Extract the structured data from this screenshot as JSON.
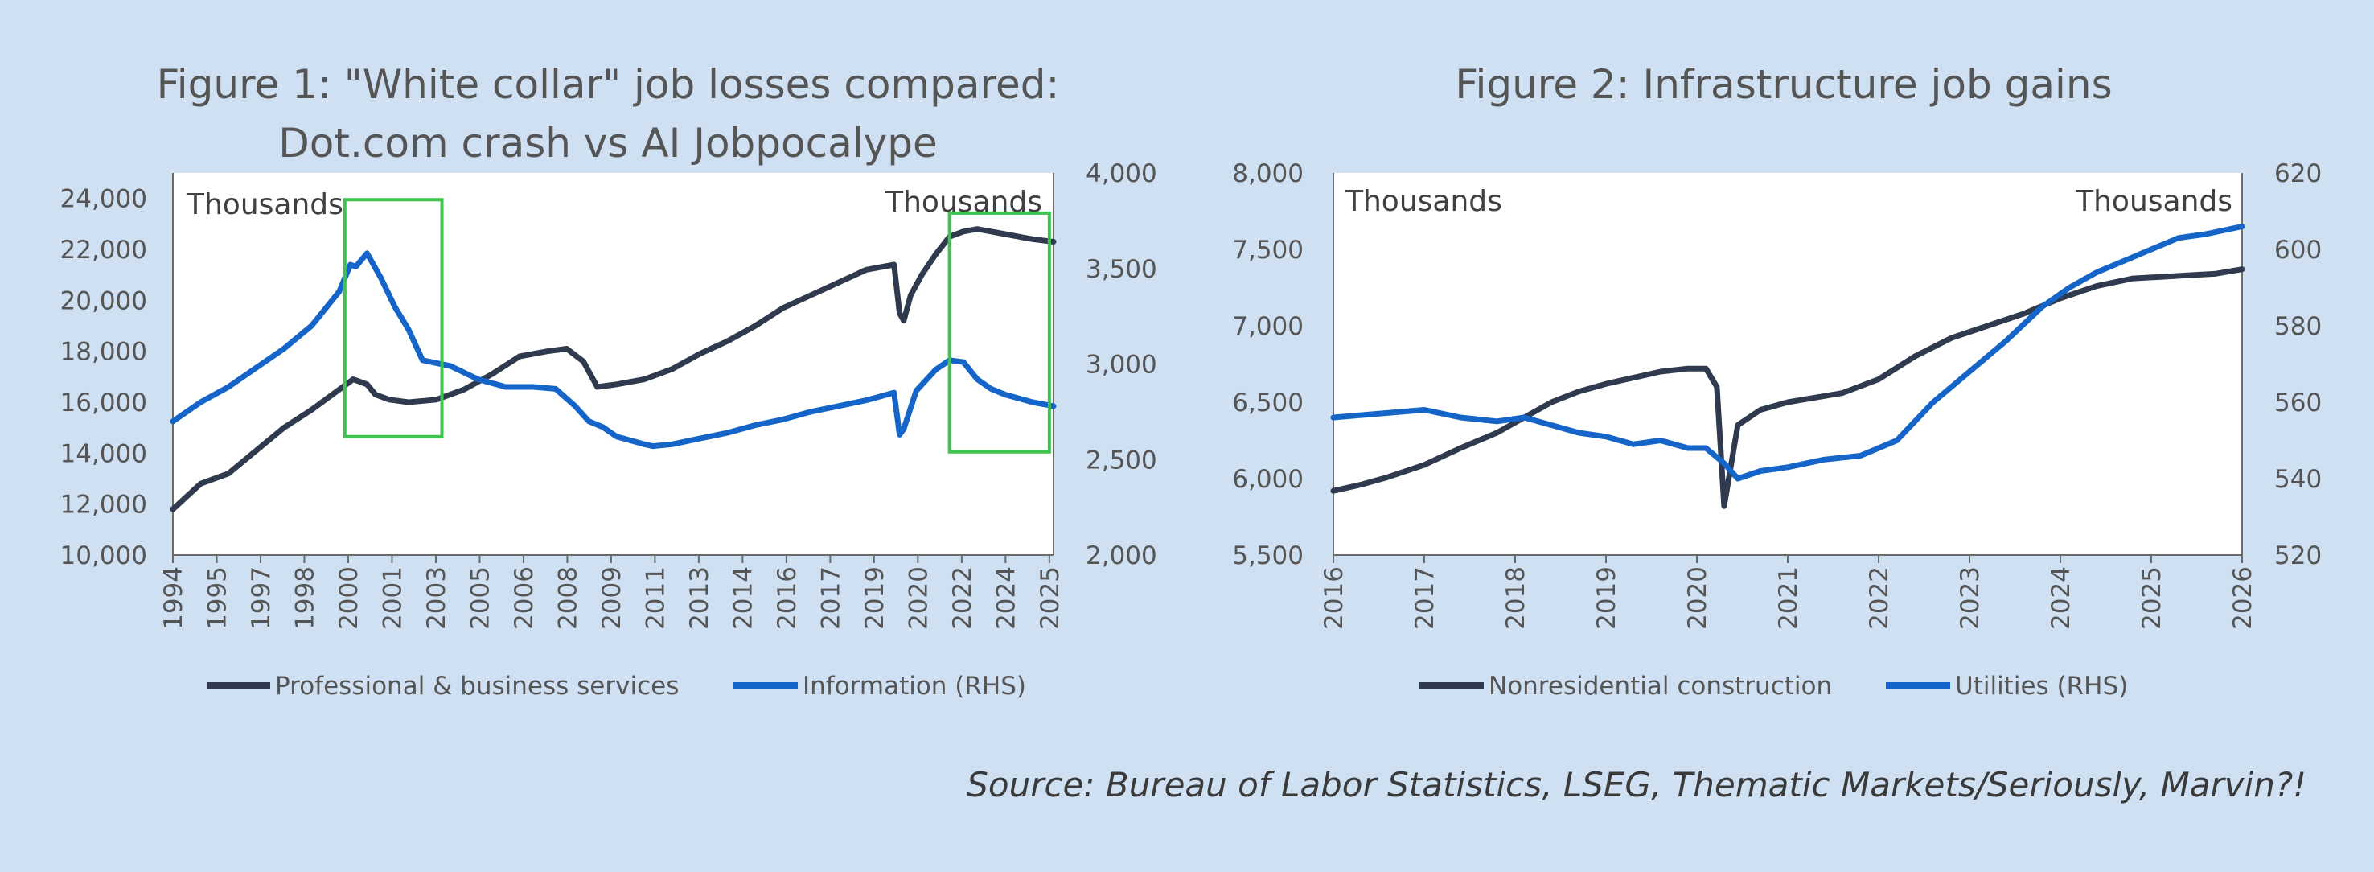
{
  "source": "Source: Bureau of Labor Statistics, LSEG, Thematic Markets/Seriously, Marvin?!",
  "colors": {
    "background": "#cfe0f3",
    "dark_series": "#2f3a4f",
    "blue_series": "#1565c8",
    "highlight_box": "#3cc44f"
  },
  "chart_data": [
    {
      "type": "line",
      "title_lines": [
        "Figure 1: \"White collar\" job losses compared:",
        "Dot.com crash vs AI Jobpocalype"
      ],
      "units_left": "Thousands",
      "units_right": "Thousands",
      "x_range": [
        1994,
        2025.75
      ],
      "x_ticks": [
        {
          "label": "1994",
          "value": 1994.0
        },
        {
          "label": "1995",
          "value": 1995.58
        },
        {
          "label": "1997",
          "value": 1997.16
        },
        {
          "label": "1998",
          "value": 1998.74
        },
        {
          "label": "2000",
          "value": 2000.32
        },
        {
          "label": "2001",
          "value": 2001.9
        },
        {
          "label": "2003",
          "value": 2003.48
        },
        {
          "label": "2005",
          "value": 2005.06
        },
        {
          "label": "2006",
          "value": 2006.64
        },
        {
          "label": "2008",
          "value": 2008.22
        },
        {
          "label": "2009",
          "value": 2009.8
        },
        {
          "label": "2011",
          "value": 2011.38
        },
        {
          "label": "2013",
          "value": 2012.96
        },
        {
          "label": "2014",
          "value": 2014.54
        },
        {
          "label": "2016",
          "value": 2016.12
        },
        {
          "label": "2017",
          "value": 2017.7
        },
        {
          "label": "2019",
          "value": 2019.28
        },
        {
          "label": "2020",
          "value": 2020.86
        },
        {
          "label": "2022",
          "value": 2022.44
        },
        {
          "label": "2024",
          "value": 2024.02
        },
        {
          "label": "2025",
          "value": 2025.6
        }
      ],
      "y_left": {
        "min": 10000,
        "max": 25000,
        "ticks": [
          "10,000",
          "12,000",
          "14,000",
          "16,000",
          "18,000",
          "20,000",
          "22,000",
          "24,000"
        ],
        "tick_values": [
          10000,
          12000,
          14000,
          16000,
          18000,
          20000,
          22000,
          24000
        ]
      },
      "y_right": {
        "min": 2000,
        "max": 4000,
        "ticks": [
          "2,000",
          "2,500",
          "3,000",
          "3,500",
          "4,000"
        ],
        "tick_values": [
          2000,
          2500,
          3000,
          3500,
          4000
        ]
      },
      "highlight_boxes": [
        {
          "x0": 2000.2,
          "x1": 2003.7,
          "y0_right": 2620,
          "y1_right": 3860
        },
        {
          "x0": 2022.0,
          "x1": 2025.6,
          "y0_right": 2540,
          "y1_right": 3790
        }
      ],
      "series": [
        {
          "name": "Professional & business services",
          "axis": "left",
          "color": "#2f3a4f",
          "x": [
            1994.0,
            1995.0,
            1996.0,
            1997.0,
            1998.0,
            1999.0,
            2000.0,
            2000.5,
            2001.0,
            2001.3,
            2001.8,
            2002.5,
            2003.5,
            2004.5,
            2005.5,
            2006.5,
            2007.5,
            2008.2,
            2008.8,
            2009.3,
            2010.0,
            2011.0,
            2012.0,
            2013.0,
            2014.0,
            2015.0,
            2016.0,
            2017.0,
            2018.0,
            2019.0,
            2020.0,
            2020.2,
            2020.35,
            2020.6,
            2021.0,
            2021.5,
            2022.0,
            2022.5,
            2023.0,
            2023.5,
            2024.0,
            2024.5,
            2025.0,
            2025.75
          ],
          "y": [
            11800,
            12800,
            13200,
            14100,
            15000,
            15700,
            16500,
            16900,
            16700,
            16300,
            16100,
            16000,
            16100,
            16500,
            17100,
            17800,
            18000,
            18100,
            17600,
            16600,
            16700,
            16900,
            17300,
            17900,
            18400,
            19000,
            19700,
            20200,
            20700,
            21200,
            21400,
            19500,
            19200,
            20200,
            21000,
            21800,
            22500,
            22700,
            22800,
            22700,
            22600,
            22500,
            22400,
            22300
          ]
        },
        {
          "name": "Information (RHS)",
          "axis": "right",
          "color": "#1565c8",
          "x": [
            1994.0,
            1995.0,
            1996.0,
            1997.0,
            1998.0,
            1999.0,
            2000.0,
            2000.4,
            2000.6,
            2001.0,
            2001.5,
            2002.0,
            2002.5,
            2003.0,
            2004.0,
            2005.0,
            2006.0,
            2007.0,
            2007.8,
            2008.5,
            2009.0,
            2009.5,
            2010.0,
            2011.0,
            2011.3,
            2012.0,
            2013.0,
            2014.0,
            2015.0,
            2016.0,
            2017.0,
            2018.0,
            2019.0,
            2020.0,
            2020.2,
            2020.35,
            2020.8,
            2021.5,
            2022.0,
            2022.5,
            2023.0,
            2023.5,
            2024.0,
            2024.5,
            2025.0,
            2025.75
          ],
          "y": [
            2700,
            2800,
            2880,
            2980,
            3080,
            3200,
            3380,
            3520,
            3510,
            3580,
            3450,
            3300,
            3180,
            3020,
            2990,
            2920,
            2880,
            2880,
            2870,
            2780,
            2700,
            2670,
            2620,
            2580,
            2570,
            2580,
            2610,
            2640,
            2680,
            2710,
            2750,
            2780,
            2810,
            2850,
            2630,
            2660,
            2860,
            2970,
            3020,
            3010,
            2920,
            2870,
            2840,
            2820,
            2800,
            2780
          ]
        }
      ]
    },
    {
      "type": "line",
      "title_lines": [
        "Figure 2: Infrastructure job gains"
      ],
      "units_left": "Thousands",
      "units_right": "Thousands",
      "x_range": [
        2016,
        2026
      ],
      "x_ticks": [
        {
          "label": "2016",
          "value": 2016
        },
        {
          "label": "2017",
          "value": 2017
        },
        {
          "label": "2018",
          "value": 2018
        },
        {
          "label": "2019",
          "value": 2019
        },
        {
          "label": "2020",
          "value": 2020
        },
        {
          "label": "2021",
          "value": 2021
        },
        {
          "label": "2022",
          "value": 2022
        },
        {
          "label": "2023",
          "value": 2023
        },
        {
          "label": "2024",
          "value": 2024
        },
        {
          "label": "2025",
          "value": 2025
        },
        {
          "label": "2026",
          "value": 2026
        }
      ],
      "y_left": {
        "min": 5500,
        "max": 8000,
        "ticks": [
          "5,500",
          "6,000",
          "6,500",
          "7,000",
          "7,500",
          "8,000"
        ],
        "tick_values": [
          5500,
          6000,
          6500,
          7000,
          7500,
          8000
        ]
      },
      "y_right": {
        "min": 520,
        "max": 620,
        "ticks": [
          "520",
          "540",
          "560",
          "580",
          "600",
          "620"
        ],
        "tick_values": [
          520,
          540,
          560,
          580,
          600,
          620
        ]
      },
      "series": [
        {
          "name": "Nonresidential construction",
          "axis": "left",
          "color": "#2f3a4f",
          "x": [
            2016.0,
            2016.3,
            2016.6,
            2017.0,
            2017.4,
            2017.8,
            2018.1,
            2018.4,
            2018.7,
            2019.0,
            2019.3,
            2019.6,
            2019.9,
            2020.1,
            2020.22,
            2020.3,
            2020.45,
            2020.7,
            2021.0,
            2021.3,
            2021.6,
            2022.0,
            2022.4,
            2022.8,
            2023.2,
            2023.6,
            2024.0,
            2024.4,
            2024.8,
            2025.1,
            2025.4,
            2025.7,
            2026.0
          ],
          "y": [
            5920,
            5960,
            6010,
            6090,
            6200,
            6300,
            6400,
            6500,
            6570,
            6620,
            6660,
            6700,
            6720,
            6720,
            6600,
            5820,
            6350,
            6450,
            6500,
            6530,
            6560,
            6650,
            6800,
            6920,
            7000,
            7080,
            7180,
            7260,
            7310,
            7320,
            7330,
            7340,
            7370
          ]
        },
        {
          "name": "Utilities (RHS)",
          "axis": "right",
          "color": "#1565c8",
          "x": [
            2016.0,
            2016.5,
            2017.0,
            2017.4,
            2017.8,
            2018.1,
            2018.4,
            2018.7,
            2019.0,
            2019.3,
            2019.6,
            2019.9,
            2020.1,
            2020.3,
            2020.45,
            2020.7,
            2021.0,
            2021.4,
            2021.8,
            2022.2,
            2022.6,
            2023.0,
            2023.4,
            2023.8,
            2024.1,
            2024.4,
            2024.7,
            2025.0,
            2025.3,
            2025.6,
            2026.0
          ],
          "y": [
            556,
            557,
            558,
            556,
            555,
            556,
            554,
            552,
            551,
            549,
            550,
            548,
            548,
            544,
            540,
            542,
            543,
            545,
            546,
            550,
            560,
            568,
            576,
            585,
            590,
            594,
            597,
            600,
            603,
            604,
            606
          ]
        }
      ]
    }
  ]
}
